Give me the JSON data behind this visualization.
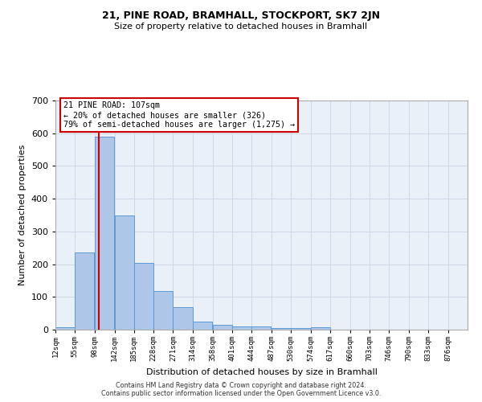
{
  "title1": "21, PINE ROAD, BRAMHALL, STOCKPORT, SK7 2JN",
  "title2": "Size of property relative to detached houses in Bramhall",
  "xlabel": "Distribution of detached houses by size in Bramhall",
  "ylabel": "Number of detached properties",
  "footer1": "Contains HM Land Registry data © Crown copyright and database right 2024.",
  "footer2": "Contains public sector information licensed under the Open Government Licence v3.0.",
  "bin_edges": [
    12,
    55,
    98,
    142,
    185,
    228,
    271,
    314,
    358,
    401,
    444,
    487,
    530,
    574,
    617,
    660,
    703,
    746,
    790,
    833,
    876
  ],
  "bar_heights": [
    8,
    237,
    590,
    350,
    203,
    117,
    70,
    25,
    15,
    9,
    9,
    5,
    5,
    8,
    0,
    0,
    0,
    0,
    0,
    0
  ],
  "bar_color": "#aec6e8",
  "bar_edge_color": "#5b9bd5",
  "grid_color": "#d0d8e8",
  "background_color": "#eaf0f8",
  "red_line_x": 107,
  "annotation_text": "21 PINE ROAD: 107sqm\n← 20% of detached houses are smaller (326)\n79% of semi-detached houses are larger (1,275) →",
  "annotation_box_color": "#ffffff",
  "annotation_border_color": "#cc0000",
  "ylim": [
    0,
    700
  ],
  "yticks": [
    0,
    100,
    200,
    300,
    400,
    500,
    600,
    700
  ],
  "tick_labels": [
    "12sqm",
    "55sqm",
    "98sqm",
    "142sqm",
    "185sqm",
    "228sqm",
    "271sqm",
    "314sqm",
    "358sqm",
    "401sqm",
    "444sqm",
    "487sqm",
    "530sqm",
    "574sqm",
    "617sqm",
    "660sqm",
    "703sqm",
    "746sqm",
    "790sqm",
    "833sqm",
    "876sqm"
  ]
}
